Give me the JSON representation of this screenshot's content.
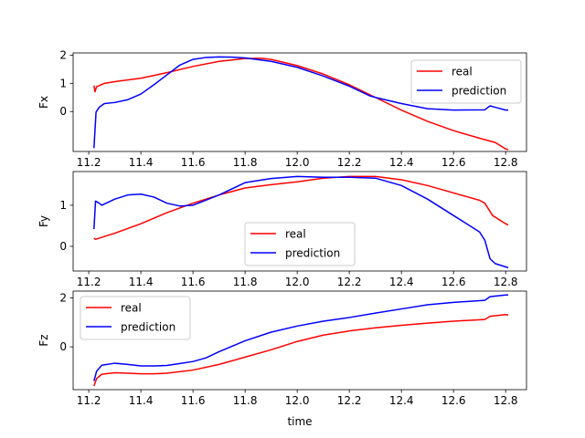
{
  "figure": {
    "xlabel": "time"
  },
  "colors": {
    "real": "#ff0000",
    "prediction": "#0000ff",
    "axes": "#000000"
  },
  "chart_data": [
    {
      "type": "line",
      "ylabel": "Fx",
      "xlim": [
        11.14,
        12.88
      ],
      "ylim": [
        -1.42,
        2.08
      ],
      "xticks": [
        11.2,
        11.4,
        11.6,
        11.8,
        12.0,
        12.2,
        12.4,
        12.6,
        12.8
      ],
      "xticklabels": [
        "11.2",
        "11.4",
        "11.6",
        "11.8",
        "12.0",
        "12.2",
        "12.4",
        "12.6",
        "12.8"
      ],
      "yticks": [
        0,
        1,
        2
      ],
      "yticklabels": [
        "0",
        "1",
        "2"
      ],
      "legend": {
        "loc": "upper right"
      },
      "series": [
        {
          "name": "real",
          "color": "#ff0000",
          "x": [
            11.22,
            11.224,
            11.23,
            11.26,
            11.3,
            11.4,
            11.5,
            11.6,
            11.7,
            11.8,
            11.86,
            11.9,
            12.0,
            12.1,
            12.2,
            12.3,
            12.4,
            12.5,
            12.6,
            12.7,
            12.76,
            12.8,
            12.81
          ],
          "y": [
            0.92,
            0.7,
            0.88,
            1.0,
            1.06,
            1.18,
            1.38,
            1.6,
            1.78,
            1.88,
            1.89,
            1.85,
            1.63,
            1.33,
            0.95,
            0.5,
            0.05,
            -0.35,
            -0.68,
            -0.95,
            -1.1,
            -1.33,
            -1.35
          ]
        },
        {
          "name": "prediction",
          "color": "#0000ff",
          "x": [
            11.22,
            11.228,
            11.24,
            11.26,
            11.3,
            11.35,
            11.4,
            11.45,
            11.5,
            11.55,
            11.6,
            11.65,
            11.7,
            11.75,
            11.8,
            11.9,
            12.0,
            12.1,
            12.2,
            12.28,
            12.3,
            12.4,
            12.5,
            12.6,
            12.72,
            12.74,
            12.76,
            12.8,
            12.81
          ],
          "y": [
            -1.3,
            -0.02,
            0.15,
            0.28,
            0.32,
            0.42,
            0.62,
            0.95,
            1.3,
            1.65,
            1.85,
            1.92,
            1.94,
            1.93,
            1.9,
            1.78,
            1.57,
            1.26,
            0.9,
            0.55,
            0.5,
            0.28,
            0.1,
            0.05,
            0.06,
            0.2,
            0.15,
            0.05,
            0.05
          ]
        }
      ]
    },
    {
      "type": "line",
      "ylabel": "Fy",
      "xlim": [
        11.14,
        12.88
      ],
      "ylim": [
        -0.6,
        1.82
      ],
      "xticks": [
        11.2,
        11.4,
        11.6,
        11.8,
        12.0,
        12.2,
        12.4,
        12.6,
        12.8
      ],
      "xticklabels": [
        "11.2",
        "11.4",
        "11.6",
        "11.8",
        "12.0",
        "12.2",
        "12.4",
        "12.6",
        "12.8"
      ],
      "yticks": [
        0,
        1
      ],
      "yticklabels": [
        "0",
        "1"
      ],
      "legend": {
        "loc": "lower center"
      },
      "series": [
        {
          "name": "real",
          "color": "#ff0000",
          "x": [
            11.22,
            11.226,
            11.25,
            11.3,
            11.4,
            11.5,
            11.6,
            11.7,
            11.8,
            11.9,
            12.0,
            12.1,
            12.2,
            12.3,
            12.4,
            12.5,
            12.6,
            12.7,
            12.72,
            12.75,
            12.8,
            12.81
          ],
          "y": [
            0.2,
            0.17,
            0.22,
            0.32,
            0.55,
            0.82,
            1.05,
            1.25,
            1.42,
            1.5,
            1.57,
            1.66,
            1.7,
            1.7,
            1.62,
            1.48,
            1.3,
            1.12,
            1.05,
            0.75,
            0.55,
            0.52
          ]
        },
        {
          "name": "prediction",
          "color": "#0000ff",
          "x": [
            11.22,
            11.226,
            11.24,
            11.25,
            11.3,
            11.35,
            11.4,
            11.45,
            11.5,
            11.55,
            11.6,
            11.7,
            11.8,
            11.9,
            12.0,
            12.1,
            12.2,
            12.3,
            12.4,
            12.5,
            12.6,
            12.7,
            12.72,
            12.74,
            12.76,
            12.8,
            12.81
          ],
          "y": [
            0.42,
            1.1,
            1.05,
            1.0,
            1.15,
            1.25,
            1.27,
            1.2,
            1.05,
            0.98,
            1.0,
            1.25,
            1.55,
            1.65,
            1.7,
            1.68,
            1.68,
            1.66,
            1.48,
            1.15,
            0.75,
            0.35,
            0.15,
            -0.3,
            -0.42,
            -0.5,
            -0.52
          ]
        }
      ]
    },
    {
      "type": "line",
      "ylabel": "Fz",
      "xlim": [
        11.14,
        12.88
      ],
      "ylim": [
        -1.75,
        2.28
      ],
      "xticks": [
        11.2,
        11.4,
        11.6,
        11.8,
        12.0,
        12.2,
        12.4,
        12.6,
        12.8
      ],
      "xticklabels": [
        "11.2",
        "11.4",
        "11.6",
        "11.8",
        "12.0",
        "12.2",
        "12.4",
        "12.6",
        "12.8"
      ],
      "yticks": [
        0,
        2
      ],
      "yticklabels": [
        "0",
        "2"
      ],
      "legend": {
        "loc": "upper left"
      },
      "series": [
        {
          "name": "real",
          "color": "#ff0000",
          "x": [
            11.22,
            11.23,
            11.25,
            11.3,
            11.35,
            11.4,
            11.45,
            11.5,
            11.6,
            11.7,
            11.8,
            11.9,
            12.0,
            12.1,
            12.2,
            12.3,
            12.4,
            12.5,
            12.6,
            12.72,
            12.74,
            12.8,
            12.81
          ],
          "y": [
            -1.6,
            -1.3,
            -1.12,
            -1.06,
            -1.08,
            -1.1,
            -1.1,
            -1.08,
            -0.95,
            -0.72,
            -0.42,
            -0.12,
            0.22,
            0.48,
            0.65,
            0.78,
            0.88,
            0.97,
            1.05,
            1.12,
            1.25,
            1.32,
            1.3
          ]
        },
        {
          "name": "prediction",
          "color": "#0000ff",
          "x": [
            11.22,
            11.23,
            11.25,
            11.3,
            11.35,
            11.4,
            11.45,
            11.5,
            11.55,
            11.6,
            11.65,
            11.7,
            11.8,
            11.9,
            12.0,
            12.1,
            12.2,
            12.3,
            12.4,
            12.5,
            12.6,
            12.72,
            12.74,
            12.8,
            12.81
          ],
          "y": [
            -1.4,
            -1.0,
            -0.75,
            -0.67,
            -0.72,
            -0.78,
            -0.78,
            -0.76,
            -0.68,
            -0.6,
            -0.45,
            -0.2,
            0.25,
            0.6,
            0.85,
            1.05,
            1.2,
            1.38,
            1.55,
            1.72,
            1.82,
            1.9,
            2.05,
            2.12,
            2.12
          ]
        }
      ]
    }
  ]
}
